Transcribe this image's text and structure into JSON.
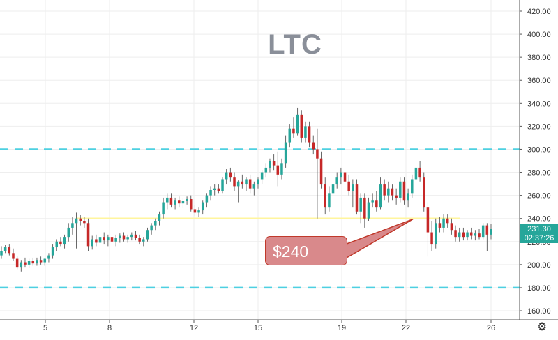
{
  "chart_data": {
    "type": "candlestick",
    "symbol_watermark": "LTC",
    "y_ticks": [
      "160.00",
      "180.00",
      "200.00",
      "220.00",
      "240.00",
      "260.00",
      "280.00",
      "300.00",
      "320.00",
      "340.00",
      "360.00",
      "380.00",
      "400.00",
      "420.00"
    ],
    "x_ticks": [
      "5",
      "8",
      "12",
      "15",
      "19",
      "22",
      "26"
    ],
    "ylim": [
      148,
      428
    ],
    "last_price": "231.30",
    "countdown": "02:37:26",
    "horizontal_levels": [
      {
        "value": 300,
        "style": "dashed",
        "color": "#4dd0e1"
      },
      {
        "value": 180,
        "style": "dashed",
        "color": "#4dd0e1"
      },
      {
        "value": 240,
        "style": "solid",
        "color": "#fff59d"
      }
    ],
    "annotation": {
      "text": "$240",
      "points_to": 240
    },
    "colors": {
      "up": "#26a69a",
      "down": "#c62828",
      "grid": "#eeeeee"
    },
    "candles": [
      {
        "o": 208,
        "h": 216,
        "l": 205,
        "c": 212
      },
      {
        "o": 212,
        "h": 217,
        "l": 210,
        "c": 215
      },
      {
        "o": 215,
        "h": 218,
        "l": 208,
        "c": 210
      },
      {
        "o": 210,
        "h": 214,
        "l": 203,
        "c": 205
      },
      {
        "o": 205,
        "h": 207,
        "l": 196,
        "c": 198
      },
      {
        "o": 198,
        "h": 204,
        "l": 194,
        "c": 202
      },
      {
        "o": 202,
        "h": 206,
        "l": 198,
        "c": 200
      },
      {
        "o": 200,
        "h": 205,
        "l": 197,
        "c": 203
      },
      {
        "o": 203,
        "h": 206,
        "l": 199,
        "c": 201
      },
      {
        "o": 201,
        "h": 206,
        "l": 199,
        "c": 204
      },
      {
        "o": 204,
        "h": 207,
        "l": 200,
        "c": 202
      },
      {
        "o": 202,
        "h": 206,
        "l": 199,
        "c": 205
      },
      {
        "o": 205,
        "h": 210,
        "l": 202,
        "c": 208
      },
      {
        "o": 208,
        "h": 218,
        "l": 205,
        "c": 215
      },
      {
        "o": 215,
        "h": 222,
        "l": 212,
        "c": 220
      },
      {
        "o": 220,
        "h": 224,
        "l": 216,
        "c": 218
      },
      {
        "o": 218,
        "h": 226,
        "l": 214,
        "c": 224
      },
      {
        "o": 224,
        "h": 236,
        "l": 220,
        "c": 232
      },
      {
        "o": 232,
        "h": 241,
        "l": 226,
        "c": 236
      },
      {
        "o": 236,
        "h": 245,
        "l": 214,
        "c": 240
      },
      {
        "o": 240,
        "h": 243,
        "l": 234,
        "c": 238
      },
      {
        "o": 238,
        "h": 241,
        "l": 232,
        "c": 236
      },
      {
        "o": 236,
        "h": 240,
        "l": 212,
        "c": 216
      },
      {
        "o": 216,
        "h": 225,
        "l": 213,
        "c": 222
      },
      {
        "o": 222,
        "h": 226,
        "l": 216,
        "c": 219
      },
      {
        "o": 219,
        "h": 226,
        "l": 216,
        "c": 224
      },
      {
        "o": 224,
        "h": 228,
        "l": 218,
        "c": 221
      },
      {
        "o": 221,
        "h": 226,
        "l": 216,
        "c": 224
      },
      {
        "o": 224,
        "h": 227,
        "l": 218,
        "c": 220
      },
      {
        "o": 220,
        "h": 226,
        "l": 216,
        "c": 223
      },
      {
        "o": 223,
        "h": 227,
        "l": 219,
        "c": 225
      },
      {
        "o": 225,
        "h": 228,
        "l": 220,
        "c": 222
      },
      {
        "o": 222,
        "h": 226,
        "l": 219,
        "c": 224
      },
      {
        "o": 224,
        "h": 228,
        "l": 221,
        "c": 226
      },
      {
        "o": 226,
        "h": 229,
        "l": 221,
        "c": 223
      },
      {
        "o": 223,
        "h": 226,
        "l": 218,
        "c": 220
      },
      {
        "o": 220,
        "h": 224,
        "l": 216,
        "c": 222
      },
      {
        "o": 222,
        "h": 232,
        "l": 220,
        "c": 230
      },
      {
        "o": 230,
        "h": 236,
        "l": 226,
        "c": 234
      },
      {
        "o": 234,
        "h": 240,
        "l": 230,
        "c": 238
      },
      {
        "o": 238,
        "h": 246,
        "l": 234,
        "c": 244
      },
      {
        "o": 244,
        "h": 258,
        "l": 240,
        "c": 254
      },
      {
        "o": 254,
        "h": 262,
        "l": 248,
        "c": 258
      },
      {
        "o": 258,
        "h": 262,
        "l": 250,
        "c": 252
      },
      {
        "o": 252,
        "h": 258,
        "l": 248,
        "c": 256
      },
      {
        "o": 256,
        "h": 259,
        "l": 250,
        "c": 253
      },
      {
        "o": 253,
        "h": 258,
        "l": 249,
        "c": 255
      },
      {
        "o": 255,
        "h": 259,
        "l": 252,
        "c": 257
      },
      {
        "o": 257,
        "h": 260,
        "l": 246,
        "c": 248
      },
      {
        "o": 248,
        "h": 252,
        "l": 242,
        "c": 245
      },
      {
        "o": 245,
        "h": 250,
        "l": 241,
        "c": 247
      },
      {
        "o": 247,
        "h": 256,
        "l": 244,
        "c": 254
      },
      {
        "o": 254,
        "h": 262,
        "l": 250,
        "c": 260
      },
      {
        "o": 260,
        "h": 268,
        "l": 256,
        "c": 265
      },
      {
        "o": 265,
        "h": 270,
        "l": 260,
        "c": 266
      },
      {
        "o": 266,
        "h": 270,
        "l": 262,
        "c": 264
      },
      {
        "o": 264,
        "h": 276,
        "l": 262,
        "c": 274
      },
      {
        "o": 274,
        "h": 283,
        "l": 270,
        "c": 280
      },
      {
        "o": 280,
        "h": 284,
        "l": 272,
        "c": 276
      },
      {
        "o": 276,
        "h": 280,
        "l": 264,
        "c": 268
      },
      {
        "o": 268,
        "h": 273,
        "l": 254,
        "c": 272
      },
      {
        "o": 272,
        "h": 278,
        "l": 266,
        "c": 270
      },
      {
        "o": 270,
        "h": 276,
        "l": 264,
        "c": 274
      },
      {
        "o": 274,
        "h": 278,
        "l": 262,
        "c": 266
      },
      {
        "o": 266,
        "h": 272,
        "l": 260,
        "c": 270
      },
      {
        "o": 270,
        "h": 276,
        "l": 266,
        "c": 274
      },
      {
        "o": 274,
        "h": 282,
        "l": 270,
        "c": 280
      },
      {
        "o": 280,
        "h": 288,
        "l": 276,
        "c": 284
      },
      {
        "o": 284,
        "h": 292,
        "l": 280,
        "c": 290
      },
      {
        "o": 290,
        "h": 296,
        "l": 282,
        "c": 286
      },
      {
        "o": 286,
        "h": 298,
        "l": 268,
        "c": 278
      },
      {
        "o": 278,
        "h": 292,
        "l": 274,
        "c": 288
      },
      {
        "o": 288,
        "h": 312,
        "l": 284,
        "c": 306
      },
      {
        "o": 306,
        "h": 322,
        "l": 302,
        "c": 318
      },
      {
        "o": 318,
        "h": 328,
        "l": 310,
        "c": 314
      },
      {
        "o": 314,
        "h": 336,
        "l": 312,
        "c": 330
      },
      {
        "o": 330,
        "h": 334,
        "l": 306,
        "c": 310
      },
      {
        "o": 310,
        "h": 324,
        "l": 306,
        "c": 320
      },
      {
        "o": 320,
        "h": 324,
        "l": 302,
        "c": 306
      },
      {
        "o": 306,
        "h": 312,
        "l": 296,
        "c": 300
      },
      {
        "o": 300,
        "h": 318,
        "l": 240,
        "c": 292
      },
      {
        "o": 292,
        "h": 298,
        "l": 266,
        "c": 270
      },
      {
        "o": 270,
        "h": 276,
        "l": 244,
        "c": 250
      },
      {
        "o": 250,
        "h": 268,
        "l": 246,
        "c": 262
      },
      {
        "o": 262,
        "h": 274,
        "l": 258,
        "c": 270
      },
      {
        "o": 270,
        "h": 280,
        "l": 266,
        "c": 276
      },
      {
        "o": 276,
        "h": 284,
        "l": 270,
        "c": 280
      },
      {
        "o": 280,
        "h": 282,
        "l": 268,
        "c": 272
      },
      {
        "o": 272,
        "h": 278,
        "l": 260,
        "c": 264
      },
      {
        "o": 264,
        "h": 274,
        "l": 250,
        "c": 270
      },
      {
        "o": 270,
        "h": 274,
        "l": 244,
        "c": 246
      },
      {
        "o": 246,
        "h": 262,
        "l": 236,
        "c": 258
      },
      {
        "o": 258,
        "h": 262,
        "l": 232,
        "c": 240
      },
      {
        "o": 240,
        "h": 258,
        "l": 238,
        "c": 254
      },
      {
        "o": 254,
        "h": 262,
        "l": 250,
        "c": 256
      },
      {
        "o": 256,
        "h": 264,
        "l": 246,
        "c": 250
      },
      {
        "o": 250,
        "h": 276,
        "l": 248,
        "c": 270
      },
      {
        "o": 270,
        "h": 274,
        "l": 256,
        "c": 260
      },
      {
        "o": 260,
        "h": 272,
        "l": 254,
        "c": 266
      },
      {
        "o": 266,
        "h": 270,
        "l": 256,
        "c": 260
      },
      {
        "o": 260,
        "h": 266,
        "l": 252,
        "c": 258
      },
      {
        "o": 258,
        "h": 276,
        "l": 254,
        "c": 272
      },
      {
        "o": 272,
        "h": 276,
        "l": 252,
        "c": 256
      },
      {
        "o": 256,
        "h": 266,
        "l": 250,
        "c": 262
      },
      {
        "o": 262,
        "h": 278,
        "l": 258,
        "c": 274
      },
      {
        "o": 274,
        "h": 286,
        "l": 270,
        "c": 284
      },
      {
        "o": 284,
        "h": 290,
        "l": 272,
        "c": 276
      },
      {
        "o": 276,
        "h": 280,
        "l": 246,
        "c": 250
      },
      {
        "o": 250,
        "h": 254,
        "l": 207,
        "c": 228
      },
      {
        "o": 228,
        "h": 238,
        "l": 212,
        "c": 218
      },
      {
        "o": 218,
        "h": 240,
        "l": 214,
        "c": 236
      },
      {
        "o": 236,
        "h": 241,
        "l": 228,
        "c": 232
      },
      {
        "o": 232,
        "h": 244,
        "l": 228,
        "c": 240
      },
      {
        "o": 240,
        "h": 244,
        "l": 232,
        "c": 236
      },
      {
        "o": 236,
        "h": 240,
        "l": 226,
        "c": 230
      },
      {
        "o": 230,
        "h": 234,
        "l": 220,
        "c": 224
      },
      {
        "o": 224,
        "h": 232,
        "l": 220,
        "c": 228
      },
      {
        "o": 228,
        "h": 232,
        "l": 221,
        "c": 224
      },
      {
        "o": 224,
        "h": 230,
        "l": 221,
        "c": 228
      },
      {
        "o": 228,
        "h": 232,
        "l": 222,
        "c": 225
      },
      {
        "o": 225,
        "h": 230,
        "l": 221,
        "c": 227
      },
      {
        "o": 227,
        "h": 231,
        "l": 222,
        "c": 224
      },
      {
        "o": 224,
        "h": 236,
        "l": 222,
        "c": 234
      },
      {
        "o": 234,
        "h": 236,
        "l": 212,
        "c": 226
      },
      {
        "o": 226,
        "h": 235,
        "l": 222,
        "c": 231.3
      }
    ]
  }
}
